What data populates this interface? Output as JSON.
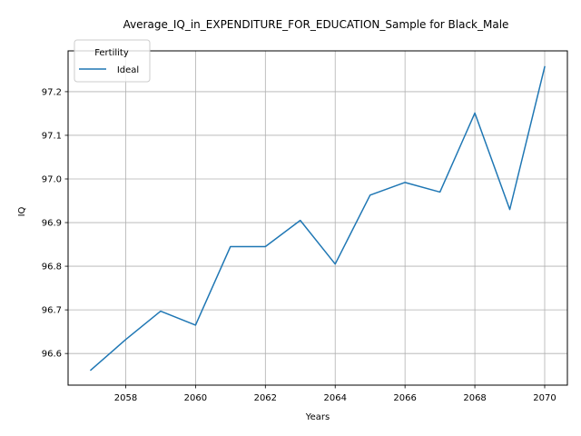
{
  "chart_data": {
    "type": "line",
    "title": "Average_IQ_in_EXPENDITURE_FOR_EDUCATION_Sample for Black_Male",
    "xlabel": "Years",
    "ylabel": "IQ",
    "xlim": [
      2056.35,
      2070.65
    ],
    "ylim": [
      96.5275,
      97.2935
    ],
    "x_ticks": [
      2058,
      2060,
      2062,
      2064,
      2066,
      2068,
      2070
    ],
    "y_ticks": [
      96.6,
      96.7,
      96.8,
      96.9,
      97.0,
      97.1,
      97.2
    ],
    "y_tick_labels": [
      "96.6",
      "96.7",
      "96.8",
      "96.9",
      "97.0",
      "97.1",
      "97.2"
    ],
    "grid": true,
    "legend": {
      "title": "Fertility",
      "placement": "top-left"
    },
    "series": [
      {
        "name": "Ideal",
        "color": "#1f77b4",
        "x": [
          2057,
          2058,
          2059,
          2060,
          2061,
          2062,
          2063,
          2064,
          2065,
          2066,
          2067,
          2068,
          2069,
          2070
        ],
        "y": [
          96.562,
          96.632,
          96.697,
          96.665,
          96.845,
          96.845,
          96.905,
          96.805,
          96.963,
          96.992,
          96.97,
          97.151,
          96.93,
          97.257
        ]
      }
    ]
  }
}
